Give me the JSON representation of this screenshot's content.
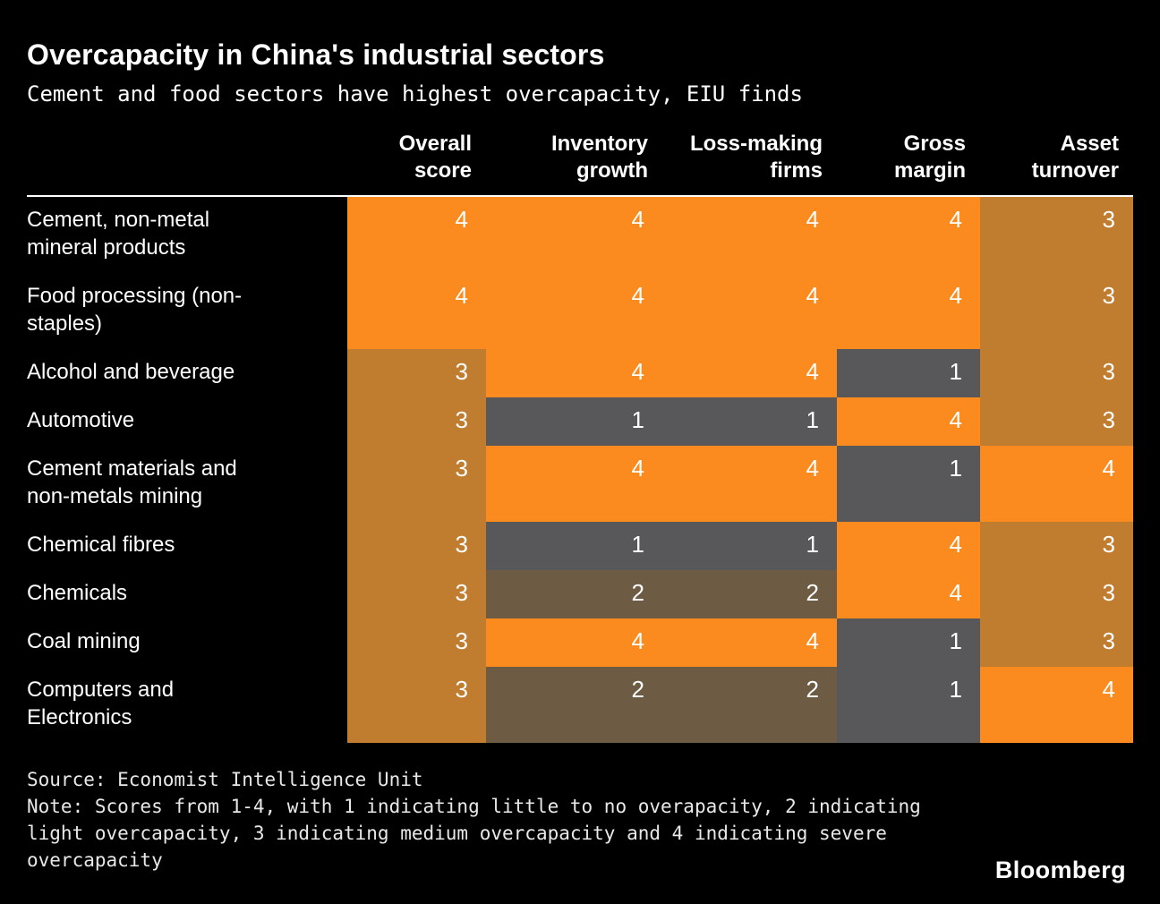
{
  "colors": {
    "background": "#000000",
    "text": "#ffffff",
    "note_text": "#e8e8e8",
    "rule": "#ffffff"
  },
  "chart_data": {
    "type": "heatmap",
    "title": "Overcapacity in China's industrial sectors",
    "subtitle": "Cement and food sectors have highest overcapacity, EIU finds",
    "columns": [
      "Overall\nscore",
      "Inventory\ngrowth",
      "Loss-making\nfirms",
      "Gross\nmargin",
      "Asset\nturnover"
    ],
    "rows": [
      {
        "sector": "Cement, non-metal mineral products",
        "values": [
          4,
          4,
          4,
          4,
          3
        ]
      },
      {
        "sector": "Food processing (non-staples)",
        "values": [
          4,
          4,
          4,
          4,
          3
        ]
      },
      {
        "sector": "Alcohol and beverage",
        "values": [
          3,
          4,
          4,
          1,
          3
        ]
      },
      {
        "sector": "Automotive",
        "values": [
          3,
          1,
          1,
          4,
          3
        ]
      },
      {
        "sector": "Cement materials and non-metals mining",
        "values": [
          3,
          4,
          4,
          1,
          4
        ]
      },
      {
        "sector": "Chemical fibres",
        "values": [
          3,
          1,
          1,
          4,
          3
        ]
      },
      {
        "sector": "Chemicals",
        "values": [
          3,
          2,
          2,
          4,
          3
        ]
      },
      {
        "sector": "Coal mining",
        "values": [
          3,
          4,
          4,
          1,
          3
        ]
      },
      {
        "sector": "Computers and Electronics",
        "values": [
          3,
          2,
          2,
          1,
          4
        ]
      }
    ],
    "score_scale": [
      1,
      2,
      3,
      4
    ],
    "score_colors": {
      "1": "#58585b",
      "2": "#6d5b43",
      "3": "#c07c2f",
      "4": "#fb8b1e"
    },
    "source": "Source: Economist Intelligence Unit",
    "note": "Note: Scores from 1-4, with 1 indicating little to no overapacity, 2 indicating light overcapacity, 3 indicating medium overcapacity and 4 indicating severe overcapacity",
    "brand": "Bloomberg"
  }
}
